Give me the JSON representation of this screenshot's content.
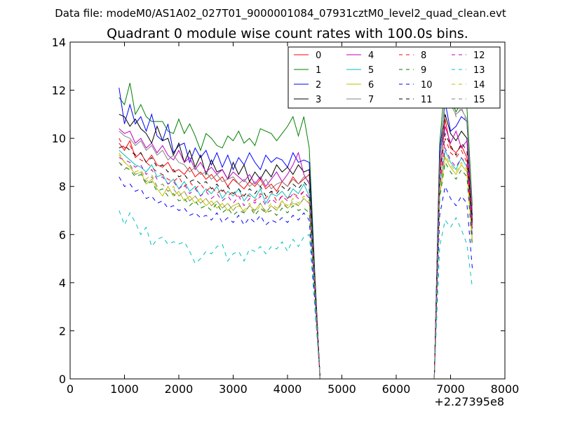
{
  "header": {
    "data_file": "Data file: modeM0/AS1A02_027T01_9000001084_07931cztM0_level2_quad_clean.evt"
  },
  "chart_data": {
    "type": "line",
    "title": "Quadrant 0 module wise count rates with 100.0s bins.",
    "xlabel": "",
    "ylabel": "",
    "xlim": [
      0,
      8000
    ],
    "ylim": [
      0,
      14
    ],
    "x_offset_label": "+2.27395e8",
    "xticks": [
      0,
      1000,
      2000,
      3000,
      4000,
      5000,
      6000,
      7000,
      8000
    ],
    "xtick_labels": [
      "0",
      "1000",
      "2000",
      "3000",
      "4000",
      "5000",
      "6000",
      "7000",
      "8000"
    ],
    "yticks": [
      0,
      2,
      4,
      6,
      8,
      10,
      12,
      14
    ],
    "ytick_labels": [
      "0",
      "2",
      "4",
      "6",
      "8",
      "10",
      "12",
      "14"
    ],
    "legend_location": "top-right",
    "x_segment1": [
      900,
      1000,
      1100,
      1200,
      1300,
      1400,
      1500,
      1600,
      1700,
      1800,
      1900,
      2000,
      2100,
      2200,
      2300,
      2400,
      2500,
      2600,
      2700,
      2800,
      2900,
      3000,
      3100,
      3200,
      3300,
      3400,
      3500,
      3600,
      3700,
      3800,
      3900,
      4000,
      4100,
      4200,
      4300,
      4400,
      4500,
      4600
    ],
    "x_gap": [
      4700,
      6600
    ],
    "x_segment2": [
      6700,
      6800,
      6900,
      7000,
      7100,
      7200,
      7300,
      7400
    ],
    "series": [
      {
        "name": "0",
        "color": "#ff0000",
        "dash": "solid",
        "level": 9.3,
        "values": [
          9.8,
          9.5,
          9.9,
          9.2,
          9.4,
          9.0,
          9.3,
          8.9,
          8.8,
          9.0,
          8.6,
          8.7,
          8.5,
          8.8,
          8.4,
          8.6,
          8.3,
          8.5,
          8.2,
          8.4,
          8.0,
          8.3,
          8.1,
          7.9,
          8.2,
          8.0,
          8.3,
          7.9,
          8.1,
          7.8,
          8.2,
          8.0,
          8.4,
          8.1,
          8.3,
          8.5,
          4.2,
          0.0
        ],
        "values2": [
          0.0,
          8.5,
          10.8,
          9.6,
          9.4,
          9.7,
          9.2,
          6.5
        ]
      },
      {
        "name": "1",
        "color": "#008000",
        "dash": "solid",
        "level": 11.0,
        "values": [
          11.7,
          11.4,
          12.3,
          11.0,
          11.4,
          10.9,
          10.7,
          10.7,
          10.7,
          10.3,
          10.2,
          10.8,
          10.2,
          10.6,
          10.1,
          9.5,
          10.2,
          10.0,
          9.7,
          9.6,
          10.1,
          9.9,
          10.3,
          9.8,
          10.0,
          9.7,
          10.4,
          10.3,
          10.2,
          9.9,
          10.2,
          10.5,
          10.9,
          10.1,
          10.9,
          9.6,
          4.5,
          0.0
        ],
        "values2": [
          0.0,
          9.8,
          12.4,
          11.7,
          11.1,
          11.5,
          11.3,
          7.2
        ]
      },
      {
        "name": "2",
        "color": "#0000ff",
        "dash": "solid",
        "level": 10.0,
        "values": [
          12.1,
          10.6,
          11.4,
          10.6,
          10.9,
          10.3,
          11.0,
          10.1,
          9.9,
          10.6,
          9.4,
          9.7,
          9.8,
          9.0,
          9.6,
          9.2,
          9.5,
          8.9,
          9.4,
          8.8,
          9.3,
          8.7,
          9.2,
          8.9,
          9.4,
          9.0,
          8.7,
          9.3,
          9.0,
          9.2,
          9.1,
          8.8,
          9.4,
          9.0,
          9.1,
          9.0,
          4.3,
          0.0
        ],
        "values2": [
          0.0,
          9.5,
          11.5,
          10.3,
          10.5,
          10.9,
          10.7,
          6.8
        ]
      },
      {
        "name": "3",
        "color": "#000000",
        "dash": "solid",
        "level": 9.7,
        "values": [
          11.0,
          10.9,
          10.5,
          10.8,
          10.4,
          10.2,
          9.8,
          10.5,
          9.9,
          10.0,
          9.3,
          9.8,
          9.0,
          9.5,
          8.8,
          9.3,
          8.5,
          9.1,
          8.6,
          8.7,
          8.3,
          9.0,
          8.5,
          8.9,
          8.2,
          8.6,
          8.3,
          8.7,
          8.4,
          8.9,
          8.6,
          8.8,
          8.5,
          8.9,
          8.6,
          8.7,
          4.2,
          0.0
        ],
        "values2": [
          0.0,
          9.2,
          11.0,
          10.2,
          9.9,
          10.3,
          10.0,
          6.6
        ]
      },
      {
        "name": "4",
        "color": "#bf00bf",
        "dash": "solid",
        "level": 9.5,
        "values": [
          10.4,
          10.2,
          10.3,
          9.8,
          10.0,
          9.6,
          9.8,
          9.4,
          9.7,
          9.3,
          9.1,
          9.5,
          9.0,
          9.2,
          8.7,
          9.0,
          8.6,
          8.8,
          8.5,
          8.7,
          8.3,
          8.6,
          8.4,
          8.2,
          8.5,
          8.1,
          8.4,
          8.0,
          8.3,
          8.6,
          8.2,
          8.5,
          8.9,
          9.4,
          8.5,
          8.1,
          4.1,
          0.0
        ],
        "values2": [
          0.0,
          8.8,
          10.5,
          9.8,
          10.3,
          9.6,
          9.9,
          6.4
        ]
      },
      {
        "name": "5",
        "color": "#00bfbf",
        "dash": "solid",
        "level": 8.9,
        "values": [
          9.5,
          9.3,
          9.1,
          8.9,
          8.8,
          8.6,
          8.9,
          8.4,
          8.5,
          8.1,
          8.3,
          7.9,
          8.2,
          7.8,
          8.0,
          7.6,
          7.9,
          7.7,
          8.0,
          7.5,
          7.8,
          7.6,
          7.9,
          7.4,
          7.7,
          7.5,
          7.9,
          7.3,
          7.7,
          7.6,
          7.8,
          7.5,
          7.9,
          7.7,
          8.1,
          7.6,
          3.9,
          0.0
        ],
        "values2": [
          0.0,
          8.0,
          9.5,
          9.0,
          8.7,
          9.2,
          8.8,
          6.0
        ]
      },
      {
        "name": "6",
        "color": "#bfbf00",
        "dash": "solid",
        "level": 8.4,
        "values": [
          9.3,
          9.0,
          8.8,
          8.5,
          8.6,
          8.1,
          8.3,
          7.9,
          7.6,
          8.0,
          7.6,
          7.8,
          7.4,
          7.6,
          7.3,
          7.5,
          7.2,
          7.4,
          7.1,
          7.3,
          7.0,
          7.2,
          7.3,
          6.9,
          7.2,
          7.0,
          7.3,
          6.9,
          7.2,
          7.0,
          7.4,
          7.1,
          7.3,
          7.2,
          7.5,
          7.3,
          3.7,
          0.0
        ],
        "values2": [
          0.0,
          7.6,
          9.2,
          8.8,
          8.5,
          8.9,
          8.6,
          5.7
        ]
      },
      {
        "name": "7",
        "color": "#808080",
        "dash": "solid",
        "level": 9.6,
        "values": [
          10.3,
          10.1,
          10.0,
          9.7,
          9.9,
          9.5,
          9.7,
          9.3,
          9.5,
          9.1,
          9.3,
          9.0,
          8.9,
          8.6,
          8.8,
          8.5,
          8.6,
          8.3,
          8.5,
          8.2,
          8.3,
          8.4,
          8.1,
          8.3,
          8.0,
          8.2,
          8.0,
          8.3,
          7.9,
          8.1,
          8.2,
          8.0,
          8.3,
          8.1,
          8.4,
          8.2,
          4.1,
          0.0
        ],
        "values2": [
          0.0,
          9.0,
          11.8,
          11.4,
          11.0,
          11.2,
          10.8,
          7.0
        ]
      },
      {
        "name": "8",
        "color": "#ff0000",
        "dash": "dashed",
        "level": 9.0,
        "values": [
          10.0,
          9.6,
          9.7,
          9.3,
          9.1,
          9.0,
          8.8,
          8.6,
          8.5,
          8.3,
          8.2,
          8.4,
          8.0,
          8.2,
          7.9,
          8.1,
          7.8,
          8.0,
          7.7,
          7.9,
          7.6,
          7.8,
          7.5,
          7.7,
          7.6,
          7.4,
          7.7,
          7.5,
          7.8,
          7.4,
          7.6,
          7.5,
          7.7,
          7.6,
          7.8,
          7.5,
          3.9,
          0.0
        ],
        "values2": [
          0.0,
          8.2,
          10.0,
          9.4,
          9.2,
          9.5,
          9.0,
          6.2
        ]
      },
      {
        "name": "9",
        "color": "#008000",
        "dash": "dashed",
        "level": 8.3,
        "values": [
          9.0,
          8.8,
          8.7,
          8.4,
          8.5,
          8.1,
          8.2,
          7.8,
          7.9,
          7.6,
          7.7,
          7.4,
          7.5,
          7.2,
          7.4,
          7.1,
          7.2,
          7.0,
          7.3,
          6.9,
          7.1,
          6.8,
          7.0,
          6.9,
          7.2,
          6.8,
          7.1,
          6.9,
          7.0,
          6.8,
          7.1,
          6.9,
          7.2,
          7.0,
          7.1,
          6.9,
          3.5,
          0.0
        ],
        "values2": [
          0.0,
          7.5,
          9.0,
          8.6,
          8.3,
          8.7,
          8.4,
          5.5
        ]
      },
      {
        "name": "10",
        "color": "#0000ff",
        "dash": "dashed",
        "level": 7.6,
        "values": [
          8.4,
          8.0,
          8.1,
          7.8,
          7.9,
          7.5,
          7.6,
          7.3,
          7.4,
          7.1,
          7.2,
          7.0,
          7.1,
          6.8,
          6.9,
          6.7,
          6.8,
          6.6,
          6.9,
          6.5,
          6.7,
          6.5,
          6.8,
          6.4,
          6.7,
          6.5,
          6.8,
          6.4,
          6.6,
          6.5,
          6.7,
          6.5,
          6.8,
          6.6,
          6.9,
          6.6,
          3.3,
          0.0
        ],
        "values2": [
          0.0,
          6.8,
          8.0,
          7.5,
          7.2,
          7.6,
          7.3,
          4.6
        ]
      },
      {
        "name": "11",
        "color": "#000000",
        "dash": "dashed",
        "level": 9.0,
        "values": [
          9.6,
          9.7,
          9.5,
          9.3,
          9.4,
          9.0,
          9.2,
          8.8,
          8.9,
          8.6,
          8.7,
          8.4,
          8.5,
          8.2,
          8.3,
          8.1,
          8.2,
          7.9,
          8.1,
          7.8,
          8.0,
          7.7,
          7.9,
          7.6,
          7.9,
          7.7,
          8.0,
          7.6,
          7.8,
          7.7,
          8.0,
          7.8,
          8.1,
          7.9,
          8.2,
          7.9,
          4.0,
          0.0
        ],
        "values2": [
          0.0,
          8.4,
          10.2,
          9.7,
          9.3,
          9.8,
          9.5,
          6.3
        ]
      },
      {
        "name": "12",
        "color": "#bf00bf",
        "dash": "dashed",
        "level": 8.8,
        "values": [
          9.2,
          9.1,
          9.0,
          8.8,
          8.9,
          8.5,
          8.7,
          8.3,
          8.4,
          8.1,
          8.2,
          7.9,
          8.1,
          7.7,
          7.9,
          7.6,
          7.8,
          7.5,
          7.7,
          7.4,
          7.6,
          7.3,
          7.6,
          7.2,
          7.5,
          7.3,
          7.6,
          7.2,
          7.5,
          7.3,
          7.6,
          7.4,
          7.7,
          7.5,
          7.8,
          7.5,
          3.8,
          0.0
        ],
        "values2": [
          0.0,
          8.0,
          9.6,
          9.1,
          8.8,
          9.2,
          8.9,
          5.9
        ]
      },
      {
        "name": "13",
        "color": "#00bfbf",
        "dash": "dashed",
        "level": 6.0,
        "values": [
          7.0,
          6.4,
          6.9,
          6.5,
          6.0,
          6.3,
          5.5,
          5.8,
          5.9,
          5.6,
          5.7,
          5.6,
          5.7,
          5.3,
          4.8,
          5.0,
          5.3,
          5.2,
          5.5,
          5.6,
          4.9,
          5.2,
          5.3,
          4.9,
          5.4,
          5.3,
          5.5,
          5.2,
          5.5,
          5.4,
          5.7,
          5.3,
          5.8,
          5.5,
          5.9,
          6.0,
          3.0,
          0.0
        ],
        "values2": [
          0.0,
          5.5,
          6.6,
          6.3,
          6.7,
          6.2,
          5.6,
          3.8
        ]
      },
      {
        "name": "14",
        "color": "#bfbf00",
        "dash": "dashed",
        "level": 8.6,
        "values": [
          9.4,
          9.0,
          8.9,
          8.6,
          8.7,
          8.3,
          8.5,
          8.0,
          8.1,
          7.8,
          8.0,
          7.6,
          7.8,
          7.4,
          7.6,
          7.3,
          7.5,
          7.2,
          7.4,
          7.1,
          7.3,
          7.0,
          7.2,
          7.0,
          7.3,
          6.9,
          7.2,
          7.0,
          7.3,
          7.1,
          7.4,
          7.2,
          7.5,
          7.3,
          7.6,
          7.4,
          3.7,
          0.0
        ],
        "values2": [
          0.0,
          7.8,
          9.3,
          8.9,
          8.6,
          9.0,
          8.7,
          5.8
        ]
      },
      {
        "name": "15",
        "color": "#808080",
        "dash": "dashed",
        "level": 8.9,
        "values": [
          9.0,
          8.7,
          8.9,
          8.5,
          8.6,
          8.2,
          8.4,
          8.0,
          8.1,
          7.8,
          7.9,
          7.6,
          7.8,
          7.4,
          7.6,
          7.3,
          7.5,
          7.2,
          7.4,
          7.1,
          7.3,
          7.0,
          7.3,
          6.9,
          7.2,
          7.0,
          7.3,
          6.9,
          7.2,
          7.0,
          7.3,
          7.1,
          7.4,
          7.2,
          7.5,
          7.3,
          3.7,
          0.0
        ],
        "values2": [
          0.0,
          8.1,
          11.5,
          11.8,
          10.9,
          11.3,
          10.6,
          6.9
        ]
      }
    ]
  }
}
